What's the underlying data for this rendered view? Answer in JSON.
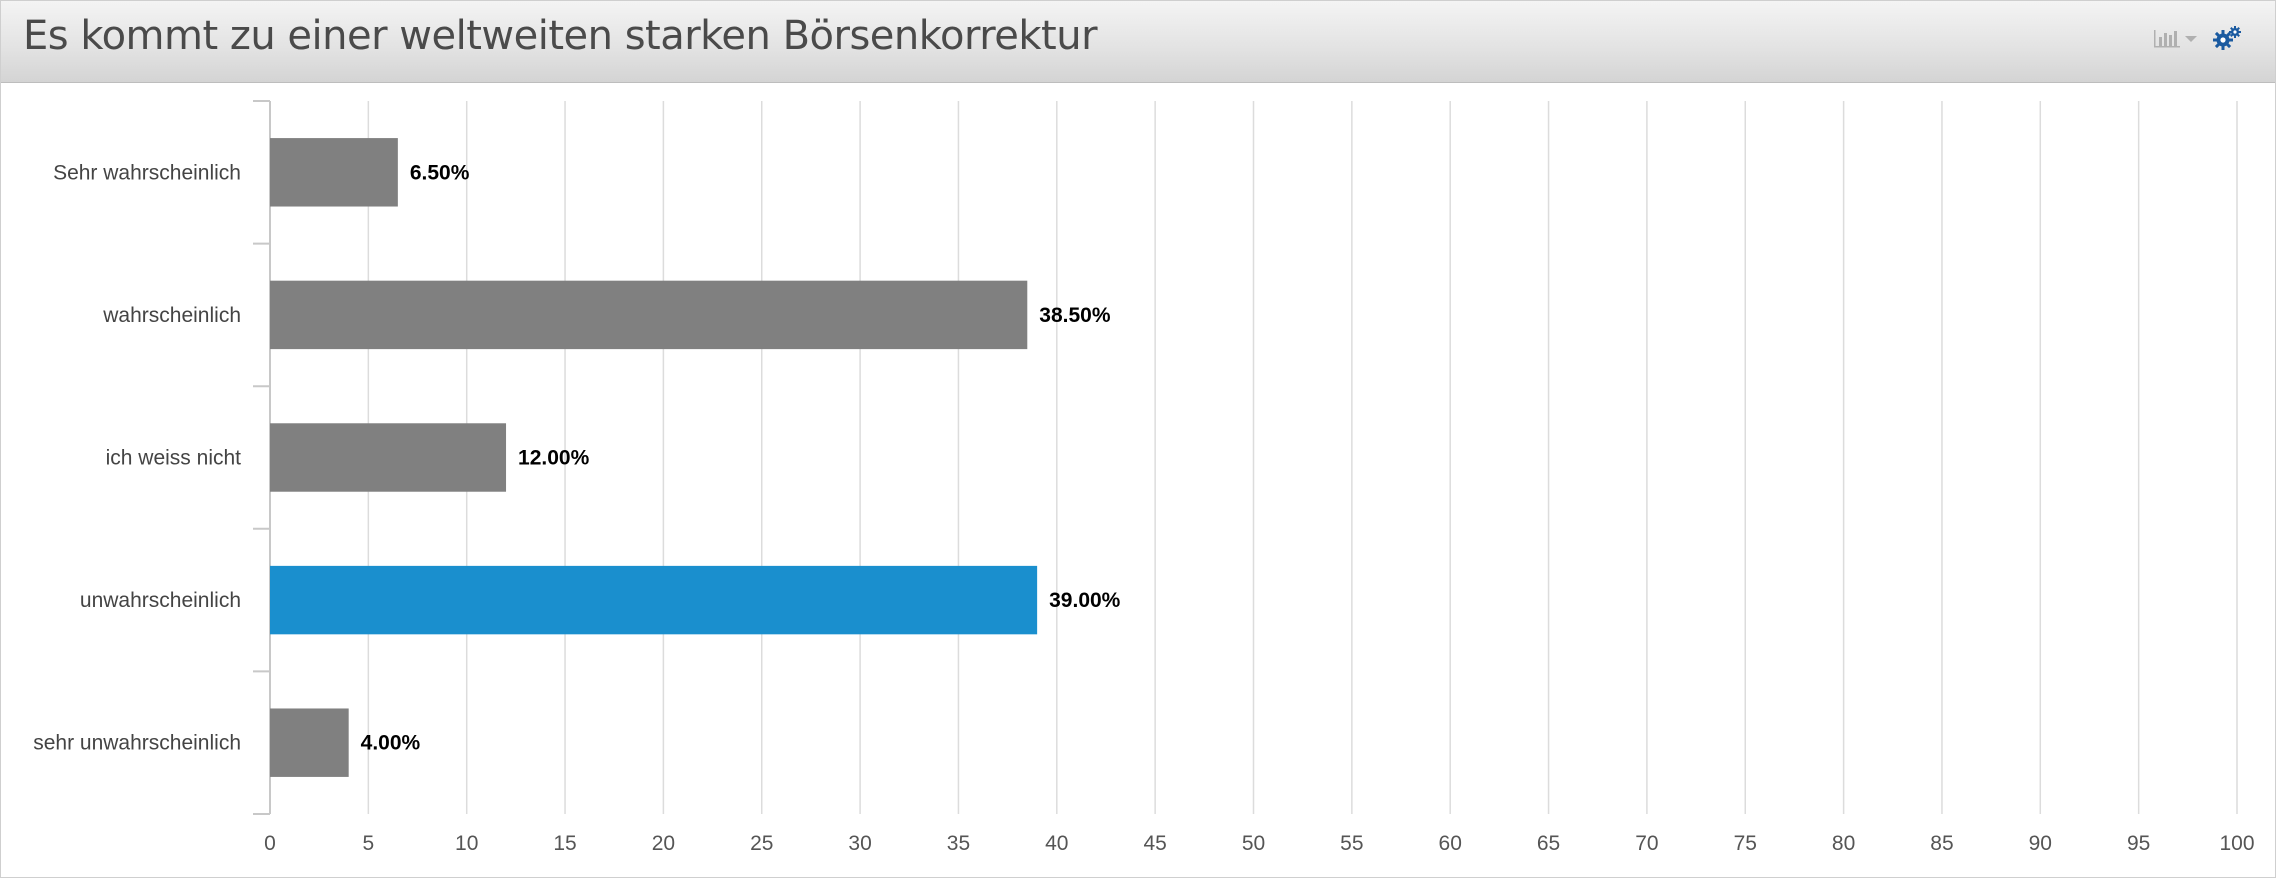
{
  "header": {
    "title": "Es kommt zu einer weltweiten starken Börsenkorrektur"
  },
  "tools": {
    "chart_type_icon": "bar-chart-icon",
    "dropdown_icon": "caret-down-icon",
    "settings_icon": "gears-icon"
  },
  "colors": {
    "bar_default": "#808080",
    "bar_highlight": "#1a8fce",
    "grid": "#dcdcdc",
    "axis": "#c8c8c8",
    "settings_icon": "#1a5aa0"
  },
  "chart_data": {
    "type": "bar",
    "orientation": "horizontal",
    "categories": [
      "Sehr wahrscheinlich",
      "wahrscheinlich",
      "ich weiss nicht",
      "unwahrscheinlich",
      "sehr unwahrscheinlich"
    ],
    "values": [
      6.5,
      38.5,
      12.0,
      39.0,
      4.0
    ],
    "data_labels": [
      "6.50%",
      "38.50%",
      "12.00%",
      "39.00%",
      "4.00%"
    ],
    "highlighted_category": "unwahrscheinlich",
    "xlim": [
      0,
      100
    ],
    "xticks": [
      0,
      5,
      10,
      15,
      20,
      25,
      30,
      35,
      40,
      45,
      50,
      55,
      60,
      65,
      70,
      75,
      80,
      85,
      90,
      95,
      100
    ],
    "grid": true,
    "legend": "none"
  }
}
